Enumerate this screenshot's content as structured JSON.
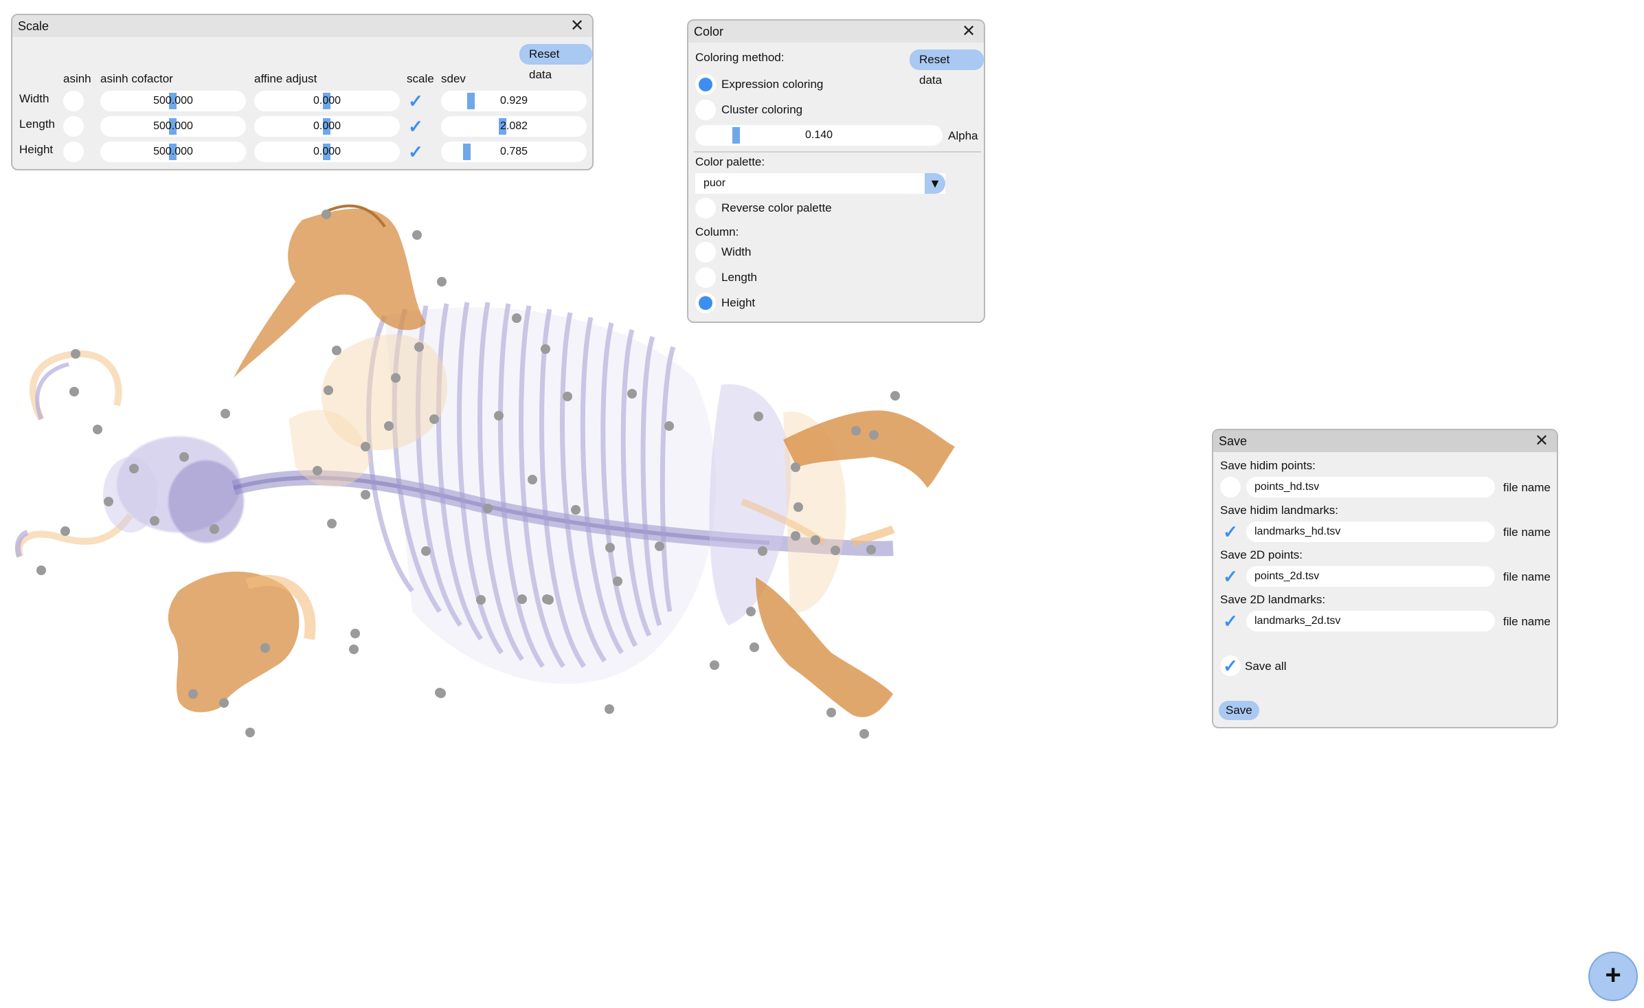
{
  "scale_panel": {
    "title": "Scale",
    "reset_label": "Reset data",
    "headers": {
      "asinh": "asinh",
      "cofactor": "asinh cofactor",
      "affine": "affine adjust",
      "scale": "scale",
      "sdev": "sdev"
    },
    "rows": [
      {
        "label": "Width",
        "cofactor": "500.000",
        "affine": "0.000",
        "sdev": "0.929"
      },
      {
        "label": "Length",
        "cofactor": "500.000",
        "affine": "0.000",
        "sdev": "2.082"
      },
      {
        "label": "Height",
        "cofactor": "500.000",
        "affine": "0.000",
        "sdev": "0.785"
      }
    ]
  },
  "color_panel": {
    "title": "Color",
    "method_label": "Coloring method:",
    "reset_label": "Reset data",
    "expression_label": "Expression coloring",
    "cluster_label": "Cluster coloring",
    "alpha_value": "0.140",
    "alpha_label": "Alpha",
    "palette_label": "Color palette:",
    "palette_value": "puor",
    "reverse_label": "Reverse color palette",
    "column_label": "Column:",
    "columns": [
      "Width",
      "Length",
      "Height"
    ],
    "selected_column": "Height"
  },
  "save_panel": {
    "title": "Save",
    "sections": [
      {
        "label": "Save hidim points:",
        "file": "points_hd.tsv",
        "checked": false
      },
      {
        "label": "Save hidim landmarks:",
        "file": "landmarks_hd.tsv",
        "checked": true
      },
      {
        "label": "Save 2D points:",
        "file": "points_2d.tsv",
        "checked": true
      },
      {
        "label": "Save 2D landmarks:",
        "file": "landmarks_2d.tsv",
        "checked": true
      }
    ],
    "file_name_label": "file name",
    "save_all_label": "Save all",
    "save_label": "Save"
  },
  "fab_label": "+",
  "colors": {
    "purple": "#8b82c4",
    "orange": "#d9842a",
    "light_orange": "#f4c890",
    "landmark": "#9a9a9a",
    "accent": "#3c8ff0",
    "button": "#a9c8f2"
  }
}
